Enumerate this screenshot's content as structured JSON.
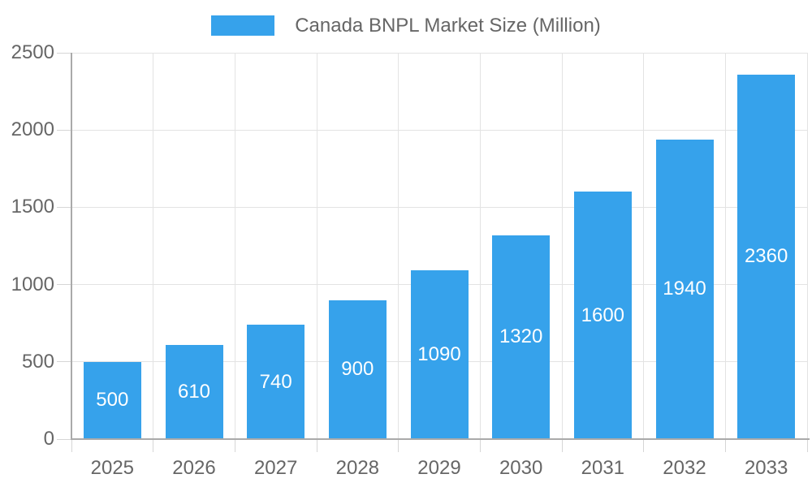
{
  "chart_data": {
    "type": "bar",
    "title": "Canada BNPL Market Size (Million)",
    "categories": [
      "2025",
      "2026",
      "2027",
      "2028",
      "2029",
      "2030",
      "2031",
      "2032",
      "2033"
    ],
    "series": [
      {
        "name": "Canada BNPL Market Size (Million)",
        "color": "#36a2eb",
        "values": [
          500,
          610,
          740,
          900,
          1090,
          1320,
          1600,
          1940,
          2360
        ]
      }
    ],
    "xlabel": "",
    "ylabel": "",
    "ylim": [
      0,
      2500
    ],
    "yticks": [
      0,
      500,
      1000,
      1500,
      2000,
      2500
    ],
    "grid": true,
    "legend_position": "top",
    "value_labels_position": "inside-center"
  },
  "colors": {
    "bar": "#36a2eb",
    "axis_text": "#666666",
    "value_label_text": "#ffffff",
    "grid_line": "#e3e3e3",
    "tick_line": "#d6d6d6",
    "axis_line": "#aaaaaa",
    "background": "#ffffff"
  }
}
